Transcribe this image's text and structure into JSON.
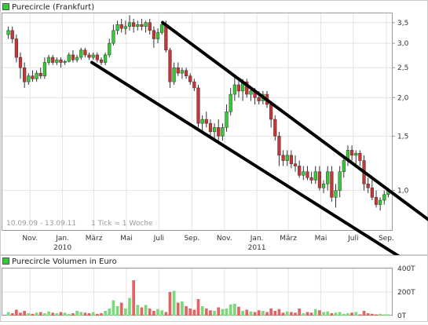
{
  "chart_data": [
    {
      "type": "candlestick",
      "legend": "Purecircle (Frankfurt)",
      "y_scale": "log",
      "ylim": [
        0.74,
        3.75
      ],
      "y_ticks": [
        {
          "value": 1.0,
          "label": "1,0"
        },
        {
          "value": 1.5,
          "label": "1,5"
        },
        {
          "value": 2.0,
          "label": "2,0"
        },
        {
          "value": 2.5,
          "label": "2,5"
        },
        {
          "value": 3.0,
          "label": "3,0"
        },
        {
          "value": 3.5,
          "label": "3,5"
        }
      ],
      "x_range": [
        "2009-09-10",
        "2011-09-13"
      ],
      "x_ticks": [
        {
          "date": "2009-11-01",
          "label": "Nov.",
          "sublabel": ""
        },
        {
          "date": "2010-01-01",
          "label": "Jan.",
          "sublabel": "2010"
        },
        {
          "date": "2010-03-01",
          "label": "März",
          "sublabel": ""
        },
        {
          "date": "2010-05-01",
          "label": "Mai",
          "sublabel": ""
        },
        {
          "date": "2010-07-01",
          "label": "Juli",
          "sublabel": ""
        },
        {
          "date": "2010-09-01",
          "label": "Sep.",
          "sublabel": ""
        },
        {
          "date": "2010-11-01",
          "label": "Nov.",
          "sublabel": ""
        },
        {
          "date": "2011-01-01",
          "label": "Jan.",
          "sublabel": "2011"
        },
        {
          "date": "2011-03-01",
          "label": "März",
          "sublabel": ""
        },
        {
          "date": "2011-05-01",
          "label": "Mai",
          "sublabel": ""
        },
        {
          "date": "2011-07-01",
          "label": "Juli",
          "sublabel": ""
        },
        {
          "date": "2011-09-01",
          "label": "Sep.",
          "sublabel": ""
        }
      ],
      "date_range_label": "10.09.09 - 13.09.11",
      "tick_note": "1 Tick = 1 Woche",
      "grid": true,
      "up_color": "#33cc33",
      "down_color": "#cc3333",
      "trend_channel": [
        {
          "name": "upper",
          "points": [
            {
              "date": "2010-07-08",
              "value": 3.5
            },
            {
              "date": "2011-09-13",
              "value": 0.98
            }
          ]
        },
        {
          "name": "lower",
          "points": [
            {
              "date": "2010-02-25",
              "value": 2.6
            },
            {
              "date": "2011-09-13",
              "value": 0.63
            }
          ]
        }
      ],
      "candles": [
        [
          3.2,
          3.4,
          3.1,
          3.3
        ],
        [
          3.3,
          3.4,
          3.0,
          3.1
        ],
        [
          3.1,
          3.2,
          2.6,
          2.7
        ],
        [
          2.7,
          2.8,
          2.3,
          2.5
        ],
        [
          2.5,
          2.6,
          2.15,
          2.25
        ],
        [
          2.25,
          2.4,
          2.2,
          2.35
        ],
        [
          2.35,
          2.45,
          2.25,
          2.3
        ],
        [
          2.3,
          2.45,
          2.25,
          2.4
        ],
        [
          2.4,
          2.5,
          2.3,
          2.35
        ],
        [
          2.35,
          2.7,
          2.3,
          2.6
        ],
        [
          2.6,
          2.75,
          2.55,
          2.7
        ],
        [
          2.7,
          2.75,
          2.55,
          2.6
        ],
        [
          2.6,
          2.7,
          2.55,
          2.65
        ],
        [
          2.65,
          2.7,
          2.5,
          2.6
        ],
        [
          2.6,
          2.65,
          2.55,
          2.62
        ],
        [
          2.62,
          2.8,
          2.6,
          2.75
        ],
        [
          2.75,
          2.85,
          2.6,
          2.65
        ],
        [
          2.65,
          2.75,
          2.6,
          2.7
        ],
        [
          2.7,
          2.9,
          2.65,
          2.85
        ],
        [
          2.85,
          2.9,
          2.7,
          2.75
        ],
        [
          2.75,
          2.8,
          2.65,
          2.7
        ],
        [
          2.7,
          2.8,
          2.65,
          2.75
        ],
        [
          2.75,
          2.8,
          2.6,
          2.65
        ],
        [
          2.65,
          2.7,
          2.55,
          2.6
        ],
        [
          2.6,
          2.8,
          2.55,
          2.75
        ],
        [
          2.75,
          3.1,
          2.7,
          3.0
        ],
        [
          3.0,
          3.45,
          2.95,
          3.3
        ],
        [
          3.3,
          3.55,
          3.2,
          3.45
        ],
        [
          3.45,
          3.6,
          3.25,
          3.35
        ],
        [
          3.35,
          3.55,
          3.2,
          3.4
        ],
        [
          3.4,
          3.7,
          3.3,
          3.5
        ],
        [
          3.5,
          3.6,
          3.25,
          3.4
        ],
        [
          3.4,
          3.55,
          3.3,
          3.45
        ],
        [
          3.45,
          3.6,
          3.3,
          3.4
        ],
        [
          3.4,
          3.55,
          3.25,
          3.5
        ],
        [
          3.5,
          3.6,
          3.2,
          3.3
        ],
        [
          3.3,
          3.4,
          2.9,
          3.1
        ],
        [
          3.1,
          3.35,
          3.0,
          3.25
        ],
        [
          3.25,
          3.55,
          3.2,
          3.45
        ],
        [
          3.45,
          3.55,
          2.8,
          2.85
        ],
        [
          2.85,
          2.9,
          2.15,
          2.25
        ],
        [
          2.25,
          2.6,
          2.2,
          2.5
        ],
        [
          2.5,
          2.6,
          2.35,
          2.4
        ],
        [
          2.4,
          2.5,
          2.3,
          2.45
        ],
        [
          2.45,
          2.5,
          2.3,
          2.35
        ],
        [
          2.35,
          2.4,
          2.2,
          2.25
        ],
        [
          2.25,
          2.3,
          2.1,
          2.15
        ],
        [
          2.15,
          2.2,
          1.6,
          1.65
        ],
        [
          1.65,
          1.75,
          1.55,
          1.7
        ],
        [
          1.7,
          1.8,
          1.6,
          1.65
        ],
        [
          1.65,
          1.7,
          1.5,
          1.55
        ],
        [
          1.55,
          1.65,
          1.45,
          1.6
        ],
        [
          1.6,
          1.7,
          1.45,
          1.5
        ],
        [
          1.5,
          1.65,
          1.45,
          1.6
        ],
        [
          1.6,
          1.9,
          1.55,
          1.8
        ],
        [
          1.8,
          2.15,
          1.75,
          2.05
        ],
        [
          2.05,
          2.35,
          1.95,
          2.2
        ],
        [
          2.2,
          2.3,
          2.0,
          2.1
        ],
        [
          2.1,
          2.3,
          1.95,
          2.25
        ],
        [
          2.25,
          2.3,
          2.0,
          2.05
        ],
        [
          2.05,
          2.15,
          1.95,
          2.1
        ],
        [
          2.1,
          2.15,
          1.9,
          2.0
        ],
        [
          2.0,
          2.1,
          1.9,
          1.95
        ],
        [
          1.95,
          2.1,
          1.9,
          2.05
        ],
        [
          2.05,
          2.1,
          1.85,
          1.9
        ],
        [
          1.9,
          1.95,
          1.6,
          1.7
        ],
        [
          1.7,
          1.75,
          1.45,
          1.5
        ],
        [
          1.5,
          1.55,
          1.2,
          1.3
        ],
        [
          1.3,
          1.35,
          1.2,
          1.25
        ],
        [
          1.25,
          1.35,
          1.2,
          1.3
        ],
        [
          1.3,
          1.35,
          1.18,
          1.22
        ],
        [
          1.22,
          1.3,
          1.15,
          1.2
        ],
        [
          1.2,
          1.25,
          1.1,
          1.12
        ],
        [
          1.12,
          1.2,
          1.08,
          1.15
        ],
        [
          1.15,
          1.2,
          1.08,
          1.1
        ],
        [
          1.1,
          1.15,
          1.05,
          1.08
        ],
        [
          1.08,
          1.2,
          1.05,
          1.15
        ],
        [
          1.15,
          1.2,
          1.0,
          1.02
        ],
        [
          1.02,
          1.08,
          0.98,
          1.05
        ],
        [
          1.05,
          1.2,
          1.0,
          1.15
        ],
        [
          1.15,
          1.2,
          0.92,
          0.95
        ],
        [
          0.95,
          1.05,
          0.88,
          1.0
        ],
        [
          1.0,
          1.2,
          0.95,
          1.15
        ],
        [
          1.15,
          1.3,
          1.1,
          1.25
        ],
        [
          1.25,
          1.4,
          1.2,
          1.35
        ],
        [
          1.35,
          1.4,
          1.25,
          1.3
        ],
        [
          1.3,
          1.35,
          1.2,
          1.32
        ],
        [
          1.32,
          1.35,
          1.2,
          1.25
        ],
        [
          1.25,
          1.3,
          1.0,
          1.05
        ],
        [
          1.05,
          1.1,
          0.98,
          1.02
        ],
        [
          1.02,
          1.08,
          0.93,
          0.95
        ],
        [
          0.95,
          1.0,
          0.88,
          0.9
        ],
        [
          0.9,
          0.95,
          0.86,
          0.93
        ],
        [
          0.93,
          1.0,
          0.9,
          0.97
        ],
        [
          0.97,
          1.02,
          0.95,
          1.0
        ]
      ]
    },
    {
      "type": "bar",
      "legend": "Purecircle Volumen in Euro",
      "ylim": [
        0,
        400000
      ],
      "y_ticks": [
        {
          "value": 0,
          "label": "0T"
        },
        {
          "value": 200000,
          "label": "200T"
        },
        {
          "value": 400000,
          "label": "400T"
        }
      ],
      "values": [
        30000,
        20000,
        50000,
        25000,
        40000,
        20000,
        15000,
        25000,
        30000,
        20000,
        35000,
        25000,
        20000,
        30000,
        25000,
        15000,
        20000,
        40000,
        30000,
        25000,
        20000,
        30000,
        15000,
        20000,
        40000,
        60000,
        130000,
        80000,
        110000,
        60000,
        150000,
        300000,
        90000,
        70000,
        90000,
        60000,
        40000,
        55000,
        45000,
        30000,
        200000,
        210000,
        110000,
        120000,
        80000,
        60000,
        50000,
        140000,
        80000,
        60000,
        45000,
        40000,
        70000,
        55000,
        60000,
        95000,
        100000,
        75000,
        40000,
        50000,
        35000,
        30000,
        45000,
        40000,
        30000,
        60000,
        40000,
        55000,
        25000,
        35000,
        30000,
        25000,
        60000,
        20000,
        30000,
        25000,
        55000,
        45000,
        30000,
        35000,
        20000,
        25000,
        30000,
        15000,
        20000,
        25000,
        30000,
        10000,
        40000,
        20000,
        15000,
        10000,
        15000,
        10000,
        10000
      ],
      "grid": true
    }
  ]
}
